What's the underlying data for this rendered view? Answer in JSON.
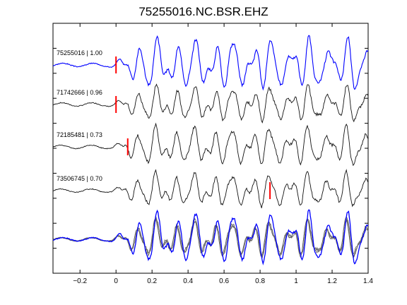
{
  "chart_data": {
    "type": "line",
    "title": "75255016.NC.BSR.EHZ",
    "xlabel": "",
    "ylabel": "",
    "xlim": [
      -0.35,
      1.4
    ],
    "x_ticks": [
      -0.2,
      0,
      0.2,
      0.4,
      0.6,
      0.8,
      1,
      1.2,
      1.4
    ],
    "x_tick_labels": [
      "−0.2",
      "0",
      "0.2",
      "0.4",
      "0.6",
      "0.8",
      "1",
      "1.2",
      "1.4"
    ],
    "y_tick_count": 11,
    "grid": false,
    "legend": "none",
    "colors": {
      "reference": "#0000ff",
      "trace": "#111111",
      "overlay": "#666666",
      "pick": "#ff0000"
    },
    "traces": [
      {
        "label": "75255016 | 1.00",
        "pick_time": 0.0,
        "color": "#0000ff",
        "seed": 3
      },
      {
        "label": "71742666 | 0.96",
        "pick_time": 0.0,
        "color": "#111111",
        "seed": 7
      },
      {
        "label": "72185481 | 0.73",
        "pick_time": 0.065,
        "color": "#111111",
        "seed": 11
      },
      {
        "label": "73506745 | 0.70",
        "pick_time": 0.855,
        "color": "#111111",
        "seed": 17
      }
    ],
    "stack": {
      "label": "",
      "reference_color": "#0000ff",
      "overlay_color": "#666666"
    }
  }
}
